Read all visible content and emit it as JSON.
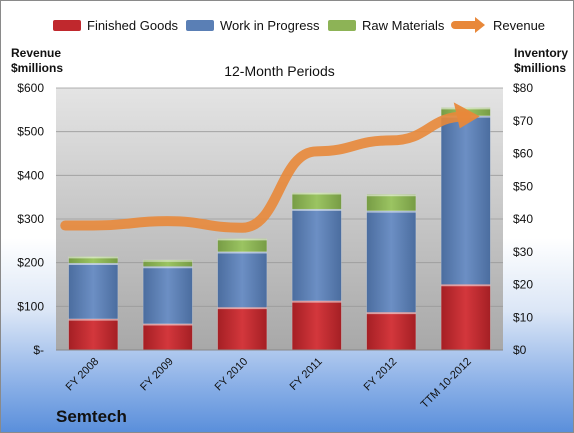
{
  "legend": [
    {
      "label": "Finished Goods",
      "color": "#c0282d"
    },
    {
      "label": "Work in Progress",
      "color": "#5a7fb5"
    },
    {
      "label": "Raw Materials",
      "color": "#8db356"
    },
    {
      "label": "Revenue",
      "color": "#e8883a"
    }
  ],
  "left_axis_title": [
    "Revenue",
    "$millions"
  ],
  "right_axis_title": [
    "Inventory",
    "$millions"
  ],
  "company": "Semtech",
  "chart_data": {
    "type": "bar",
    "title": "12-Month Periods",
    "categories": [
      "FY 2008",
      "FY 2009",
      "FY 2010",
      "FY 2011",
      "FY 2012",
      "TTM 10-2012"
    ],
    "series": [
      {
        "name": "Finished Goods",
        "axis": "right",
        "stack": true,
        "values": [
          9.5,
          8,
          13,
          15,
          11.5,
          20
        ]
      },
      {
        "name": "Work in Progress",
        "axis": "right",
        "stack": true,
        "values": [
          17,
          17.5,
          17,
          28,
          31,
          51.5
        ]
      },
      {
        "name": "Raw Materials",
        "axis": "right",
        "stack": true,
        "values": [
          2,
          2,
          4,
          5,
          5,
          2.5
        ]
      },
      {
        "name": "Revenue",
        "axis": "left",
        "type": "line",
        "values": [
          285,
          295,
          280,
          455,
          480,
          535
        ]
      }
    ],
    "left_axis": {
      "range": [
        0,
        600
      ],
      "ticks": [
        "$-",
        "$100",
        "$200",
        "$300",
        "$400",
        "$500",
        "$600"
      ]
    },
    "right_axis": {
      "range": [
        0,
        80
      ],
      "ticks": [
        "$0",
        "$10",
        "$20",
        "$30",
        "$40",
        "$50",
        "$60",
        "$70",
        "$80"
      ]
    },
    "grid": true,
    "legend_position": "top"
  }
}
